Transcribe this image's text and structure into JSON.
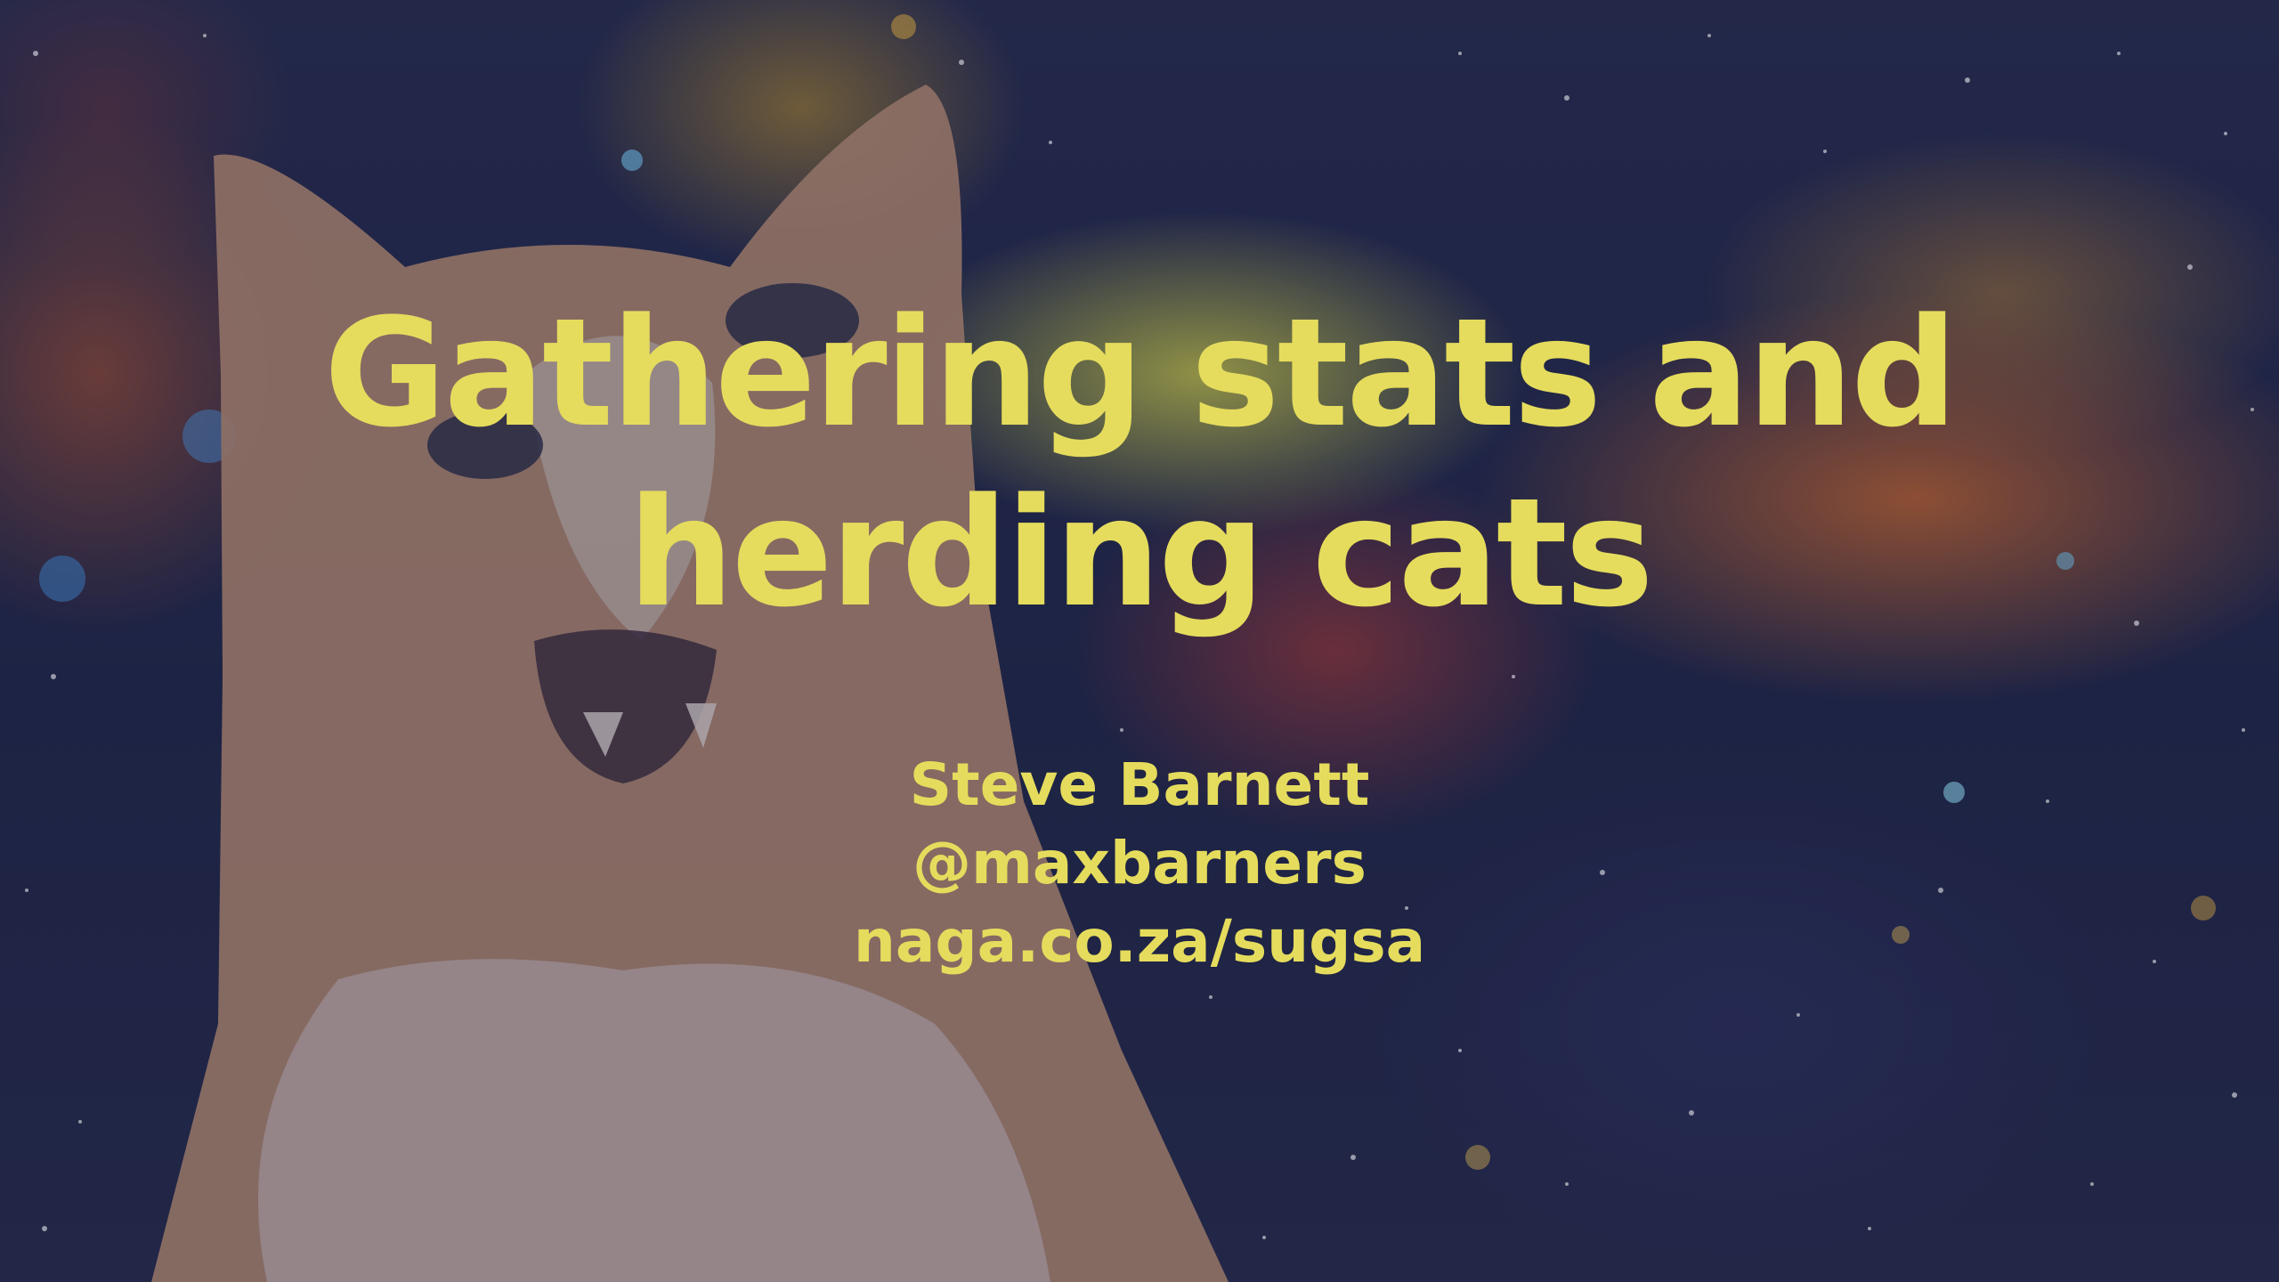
{
  "slide": {
    "title_line_1": "Gathering stats and",
    "title_line_2": "herding cats",
    "author": "Steve Barnett",
    "handle": "@maxbarners",
    "url": "naga.co.za/sugsa"
  },
  "colors": {
    "text": "#e5dc5d",
    "background_space": "#1d2345"
  },
  "icons": {
    "background_image": "space-cat-image"
  }
}
